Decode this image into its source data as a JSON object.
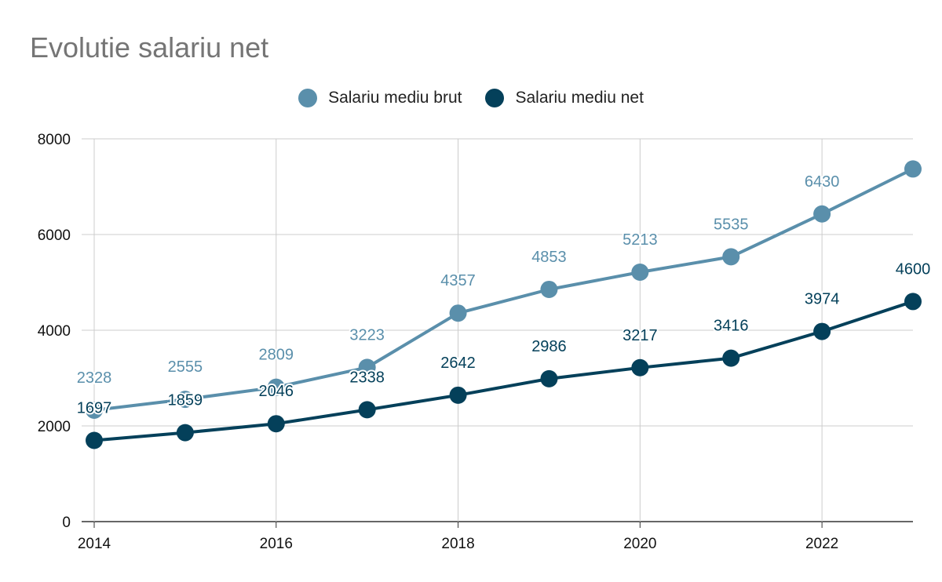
{
  "chart_data": {
    "type": "line",
    "title": "Evolutie salariu net",
    "xlabel": "",
    "ylabel": "",
    "x": [
      2014,
      2015,
      2016,
      2017,
      2018,
      2019,
      2020,
      2021,
      2022,
      2023
    ],
    "xlim": [
      2014,
      2023
    ],
    "ylim": [
      0,
      8000
    ],
    "x_ticks": [
      "2014",
      "2016",
      "2018",
      "2020",
      "2022"
    ],
    "y_ticks": [
      "0",
      "2000",
      "4000",
      "6000",
      "8000"
    ],
    "x_tick_values": [
      2014,
      2016,
      2018,
      2020,
      2022
    ],
    "y_tick_values": [
      0,
      2000,
      4000,
      6000,
      8000
    ],
    "grid": true,
    "legend_position": "top",
    "series": [
      {
        "name": "Salariu mediu brut",
        "color": "#5a8fab",
        "values": [
          2328,
          2555,
          2809,
          3223,
          4357,
          4853,
          5213,
          5535,
          6430,
          7370
        ],
        "labels": [
          "2328",
          "2555",
          "2809",
          "3223",
          "4357",
          "4853",
          "5213",
          "5535",
          "6430",
          ""
        ]
      },
      {
        "name": "Salariu mediu net",
        "color": "#04405a",
        "values": [
          1697,
          1859,
          2046,
          2338,
          2642,
          2986,
          3217,
          3416,
          3974,
          4600
        ],
        "labels": [
          "1697",
          "1859",
          "2046",
          "2338",
          "2642",
          "2986",
          "3217",
          "3416",
          "3974",
          "4600"
        ]
      }
    ]
  }
}
